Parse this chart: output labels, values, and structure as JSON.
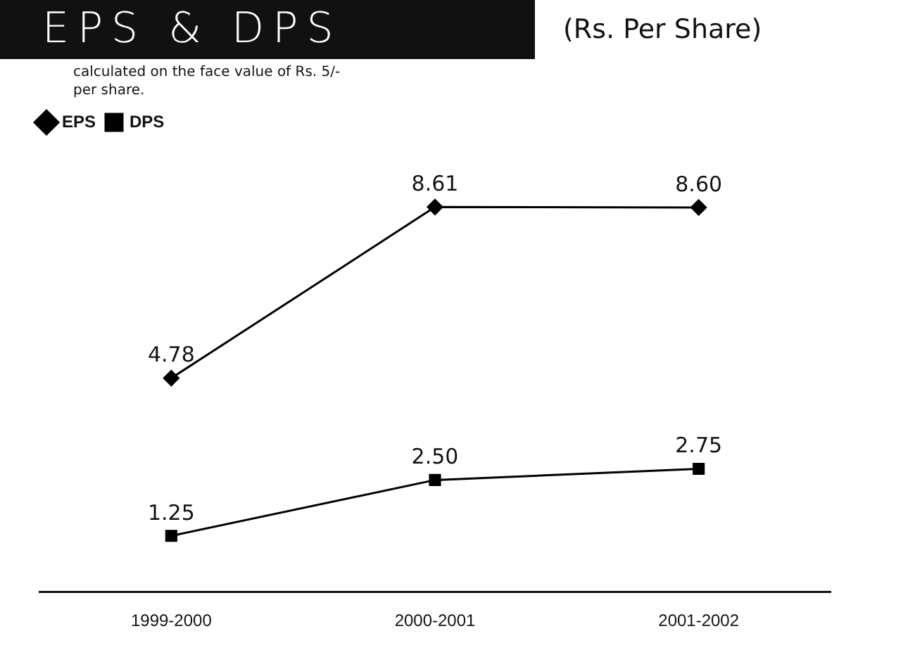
{
  "chart_data": {
    "type": "line",
    "title": "EPS & DPS",
    "subtitle": "(Rs. Per Share)",
    "annotations": [
      "calculated on the face value of Rs. 5/- per share."
    ],
    "categories": [
      "1999-2000",
      "2000-2001",
      "2001-2002"
    ],
    "series": [
      {
        "name": "EPS",
        "color": "#000000",
        "marker": "diamond",
        "values": [
          4.78,
          8.61,
          8.6
        ],
        "value_labels": [
          "4.78",
          "8.61",
          "8.60"
        ]
      },
      {
        "name": "DPS",
        "color": "#000000",
        "marker": "square",
        "values": [
          1.25,
          2.5,
          2.75
        ],
        "value_labels": [
          "1.25",
          "2.50",
          "2.75"
        ]
      }
    ],
    "relative": false,
    "legend": "top left",
    "grid": false,
    "line_style": "solid"
  }
}
